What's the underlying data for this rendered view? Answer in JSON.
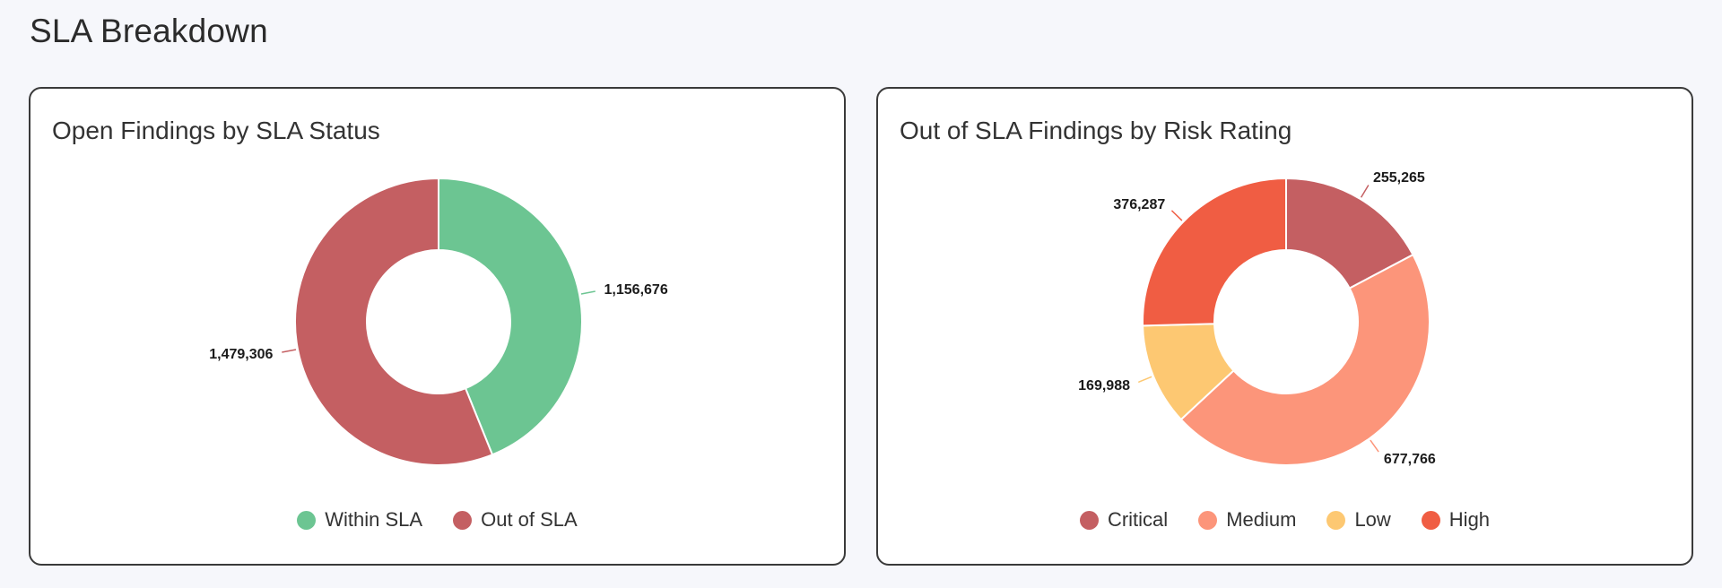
{
  "page": {
    "section_title": "SLA Breakdown"
  },
  "chart_data": [
    {
      "type": "pie",
      "title": "Open Findings by SLA Status",
      "donut": true,
      "legend_position": "bottom",
      "series": [
        {
          "name": "Within SLA",
          "value": 1156676,
          "label": "1,156,676",
          "color": "#6cc592"
        },
        {
          "name": "Out of SLA",
          "value": 1479306,
          "label": "1,479,306",
          "color": "#c45f62"
        }
      ]
    },
    {
      "type": "pie",
      "title": "Out of SLA Findings by Risk Rating",
      "donut": true,
      "legend_position": "bottom",
      "series": [
        {
          "name": "Critical",
          "value": 255265,
          "label": "255,265",
          "color": "#c45f62"
        },
        {
          "name": "Medium",
          "value": 677766,
          "label": "677,766",
          "color": "#fc957a"
        },
        {
          "name": "Low",
          "value": 169988,
          "label": "169,988",
          "color": "#fdc872"
        },
        {
          "name": "High",
          "value": 376287,
          "label": "376,287",
          "color": "#f05d43"
        }
      ]
    }
  ]
}
